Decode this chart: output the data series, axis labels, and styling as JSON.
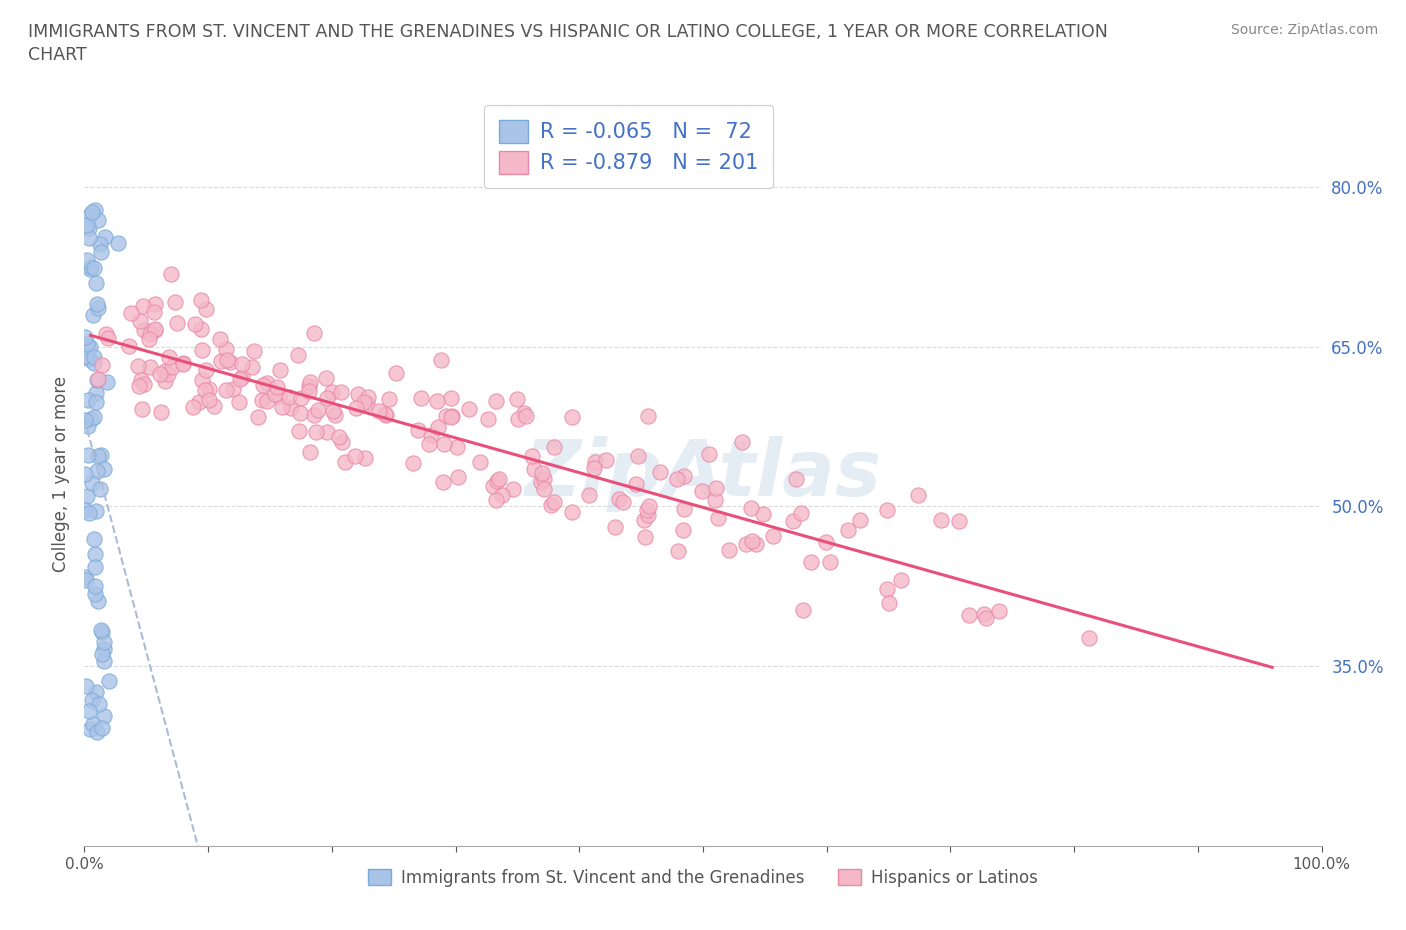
{
  "title_line1": "IMMIGRANTS FROM ST. VINCENT AND THE GRENADINES VS HISPANIC OR LATINO COLLEGE, 1 YEAR OR MORE CORRELATION",
  "title_line2": "CHART",
  "source": "Source: ZipAtlas.com",
  "ylabel": "College, 1 year or more",
  "xlim": [
    0.0,
    1.0
  ],
  "ylim": [
    0.18,
    0.88
  ],
  "yticks": [
    0.35,
    0.5,
    0.65,
    0.8
  ],
  "xticks": [
    0.0,
    0.1,
    0.2,
    0.3,
    0.4,
    0.5,
    0.6,
    0.7,
    0.8,
    0.9,
    1.0
  ],
  "xtick_labels": [
    "0.0%",
    "",
    "",
    "",
    "",
    "",
    "",
    "",
    "",
    "",
    "100.0%"
  ],
  "ytick_labels": [
    "35.0%",
    "50.0%",
    "65.0%",
    "80.0%"
  ],
  "blue_color": "#aac4e8",
  "blue_edge": "#7aaad8",
  "pink_color": "#f5b8c8",
  "pink_edge": "#e888a8",
  "blue_line_color": "#aabbd8",
  "pink_line_color": "#e8507a",
  "blue_R": -0.065,
  "blue_N": 72,
  "pink_R": -0.879,
  "pink_N": 201,
  "legend_label_blue": "Immigrants from St. Vincent and the Grenadines",
  "legend_label_pink": "Hispanics or Latinos",
  "watermark": "ZipAtlas",
  "background_color": "#ffffff",
  "grid_color": "#cccccc",
  "text_color": "#4472c4",
  "title_color": "#555555"
}
